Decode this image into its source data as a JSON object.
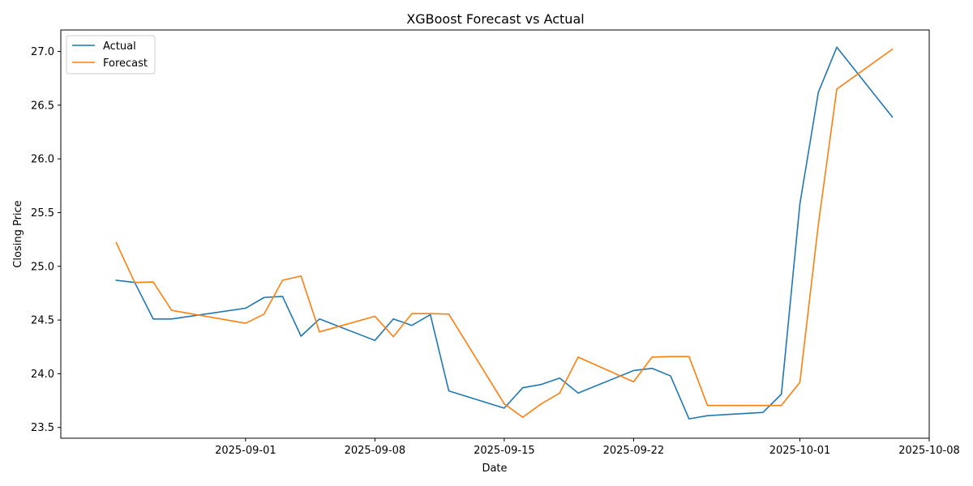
{
  "chart_data": {
    "type": "line",
    "title": "XGBoost Forecast vs Actual",
    "xlabel": "Date",
    "ylabel": "Closing Price",
    "xlim": [
      "2025-08-22",
      "2025-10-08"
    ],
    "ylim": [
      23.4,
      27.2
    ],
    "x_ticks": [
      "2025-09-01",
      "2025-09-08",
      "2025-09-15",
      "2025-09-22",
      "2025-10-01",
      "2025-10-08"
    ],
    "y_ticks": [
      23.5,
      24.0,
      24.5,
      25.0,
      25.5,
      26.0,
      26.5,
      27.0
    ],
    "y_tick_labels": [
      "23.5",
      "24.0",
      "24.5",
      "25.0",
      "25.5",
      "26.0",
      "26.5",
      "27.0"
    ],
    "legend_position": "upper-left",
    "grid": false,
    "series": [
      {
        "name": "Actual",
        "color": "#1f77b4",
        "points": [
          [
            "2025-08-25",
            24.87
          ],
          [
            "2025-08-26",
            24.85
          ],
          [
            "2025-08-27",
            24.51
          ],
          [
            "2025-08-28",
            24.51
          ],
          [
            "2025-09-01",
            24.61
          ],
          [
            "2025-09-02",
            24.71
          ],
          [
            "2025-09-03",
            24.72
          ],
          [
            "2025-09-04",
            24.35
          ],
          [
            "2025-09-05",
            24.51
          ],
          [
            "2025-09-08",
            24.31
          ],
          [
            "2025-09-09",
            24.51
          ],
          [
            "2025-09-10",
            24.45
          ],
          [
            "2025-09-11",
            24.55
          ],
          [
            "2025-09-12",
            23.84
          ],
          [
            "2025-09-15",
            23.68
          ],
          [
            "2025-09-16",
            23.87
          ],
          [
            "2025-09-17",
            23.9
          ],
          [
            "2025-09-18",
            23.96
          ],
          [
            "2025-09-19",
            23.82
          ],
          [
            "2025-09-22",
            24.03
          ],
          [
            "2025-09-23",
            24.05
          ],
          [
            "2025-09-24",
            23.98
          ],
          [
            "2025-09-25",
            23.58
          ],
          [
            "2025-09-26",
            23.61
          ],
          [
            "2025-09-29",
            23.64
          ],
          [
            "2025-09-30",
            23.81
          ],
          [
            "2025-10-01",
            25.58
          ],
          [
            "2025-10-02",
            26.62
          ],
          [
            "2025-10-03",
            27.04
          ],
          [
            "2025-10-06",
            26.39
          ]
        ]
      },
      {
        "name": "Forecast",
        "color": "#ff7f0e",
        "points": [
          [
            "2025-08-25",
            25.22
          ],
          [
            "2025-08-26",
            24.85
          ],
          [
            "2025-08-27",
            24.855
          ],
          [
            "2025-08-28",
            24.59
          ],
          [
            "2025-09-01",
            24.47
          ],
          [
            "2025-09-02",
            24.555
          ],
          [
            "2025-09-03",
            24.87
          ],
          [
            "2025-09-04",
            24.91
          ],
          [
            "2025-09-05",
            24.39
          ],
          [
            "2025-09-08",
            24.535
          ],
          [
            "2025-09-09",
            24.345
          ],
          [
            "2025-09-10",
            24.56
          ],
          [
            "2025-09-11",
            24.56
          ],
          [
            "2025-09-12",
            24.555
          ],
          [
            "2025-09-15",
            23.72
          ],
          [
            "2025-09-16",
            23.595
          ],
          [
            "2025-09-17",
            23.72
          ],
          [
            "2025-09-18",
            23.82
          ],
          [
            "2025-09-19",
            24.155
          ],
          [
            "2025-09-22",
            23.925
          ],
          [
            "2025-09-23",
            24.155
          ],
          [
            "2025-09-24",
            24.16
          ],
          [
            "2025-09-25",
            24.16
          ],
          [
            "2025-09-26",
            23.705
          ],
          [
            "2025-09-29",
            23.705
          ],
          [
            "2025-09-30",
            23.705
          ],
          [
            "2025-10-01",
            23.92
          ],
          [
            "2025-10-02",
            25.39
          ],
          [
            "2025-10-03",
            26.65
          ],
          [
            "2025-10-06",
            27.02
          ]
        ]
      }
    ]
  }
}
